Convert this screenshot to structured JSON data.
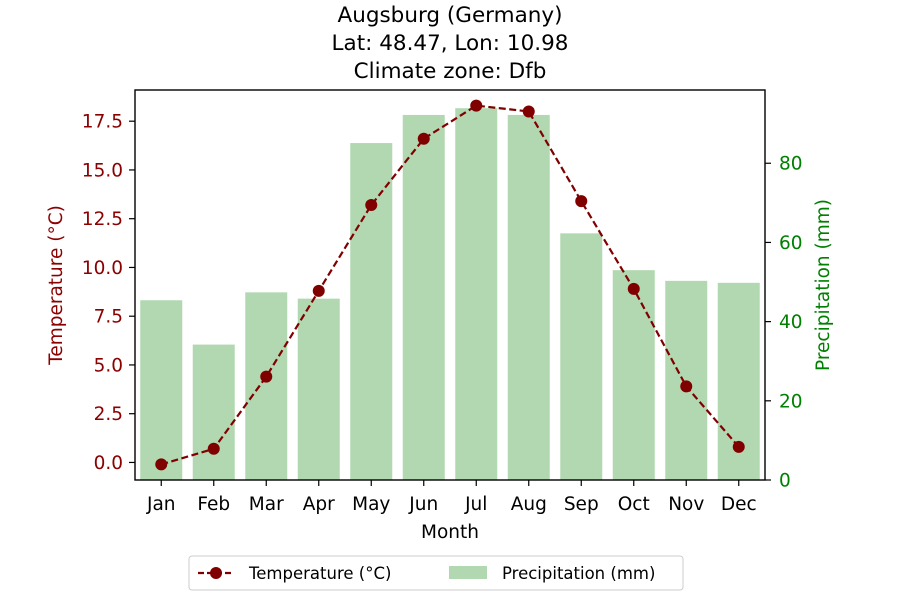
{
  "chart_data": {
    "type": "bar+line",
    "title": [
      "Augsburg (Germany)",
      "Lat: 48.47, Lon: 10.98",
      "Climate zone: Dfb"
    ],
    "xlabel": "Month",
    "categories": [
      "Jan",
      "Feb",
      "Mar",
      "Apr",
      "May",
      "Jun",
      "Jul",
      "Aug",
      "Sep",
      "Oct",
      "Nov",
      "Dec"
    ],
    "series": [
      {
        "name": "Temperature (°C)",
        "kind": "line",
        "axis": "left",
        "color": "#800000",
        "style": "dashed with circle markers",
        "values": [
          -0.1,
          0.7,
          4.4,
          8.8,
          13.2,
          16.6,
          18.3,
          18.0,
          13.4,
          8.9,
          3.9,
          0.8
        ]
      },
      {
        "name": "Precipitation (mm)",
        "kind": "bar",
        "axis": "right",
        "color": "#b2d8b2",
        "values": [
          45.4,
          34.2,
          47.4,
          45.8,
          85.1,
          92.2,
          93.9,
          92.2,
          62.3,
          53.0,
          50.3,
          49.8
        ]
      }
    ],
    "y_left": {
      "label": "Temperature (°C)",
      "color": "#8b0000",
      "ylim": [
        -0.9,
        19.1
      ],
      "ticks": [
        0.0,
        2.5,
        5.0,
        7.5,
        10.0,
        12.5,
        15.0,
        17.5
      ],
      "tick_labels": [
        "0.0",
        "2.5",
        "5.0",
        "7.5",
        "10.0",
        "12.5",
        "15.0",
        "17.5"
      ]
    },
    "y_right": {
      "label": "Precipitation (mm)",
      "color": "#008000",
      "ylim": [
        0,
        98.5
      ],
      "ticks": [
        0,
        20,
        40,
        60,
        80
      ],
      "tick_labels": [
        "0",
        "20",
        "40",
        "60",
        "80"
      ]
    },
    "grid": false,
    "legend_placement": "bottom-center, outside the plot, 2 columns"
  }
}
